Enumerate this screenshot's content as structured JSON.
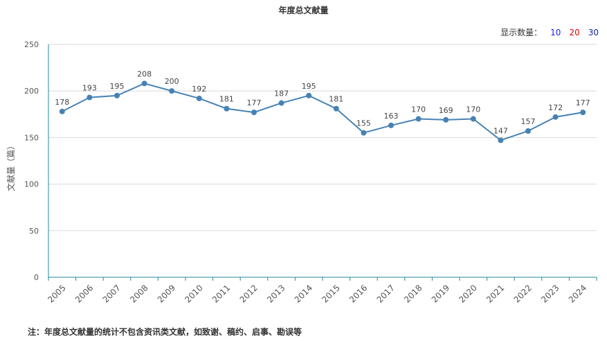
{
  "colors": {
    "line": "#4682b4",
    "axis": "#1f8a9a",
    "grid": "#d9d9d9",
    "opt10": "#1a1aff",
    "opt20": "#e00000",
    "opt30": "#1a1aa6"
  },
  "count_switch": {
    "label": "显示数量：",
    "options": [
      "10",
      "20",
      "30"
    ]
  },
  "footnote": "注：年度总文献量的统计不包含资讯类文献，如致谢、稿约、启事、勘误等",
  "chart_data": {
    "type": "line",
    "title": "年度总文献量",
    "xlabel": "",
    "ylabel": "文献量（篇）",
    "ylim": [
      0,
      250
    ],
    "yticks": [
      "0",
      "50",
      "100",
      "150",
      "200",
      "250"
    ],
    "grid": true,
    "categories": [
      "2005",
      "2006",
      "2007",
      "2008",
      "2009",
      "2010",
      "2011",
      "2012",
      "2013",
      "2014",
      "2015",
      "2016",
      "2017",
      "2018",
      "2019",
      "2020",
      "2021",
      "2022",
      "2023",
      "2024"
    ],
    "series": [
      {
        "values": [
          178,
          193,
          195,
          208,
          200,
          192,
          181,
          177,
          187,
          195,
          181,
          155,
          163,
          170,
          169,
          170,
          147,
          157,
          172,
          177
        ]
      }
    ]
  }
}
